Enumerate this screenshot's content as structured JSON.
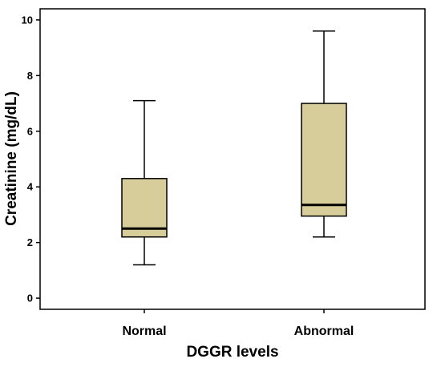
{
  "chart_data": {
    "type": "boxplot",
    "title": "",
    "xlabel": "DGGR levels",
    "ylabel": "Creatinine (mg/dL)",
    "categories": [
      "Normal",
      "Abnormal"
    ],
    "ylim": [
      -0.4,
      10.4
    ],
    "yticks": [
      "0",
      "2",
      "4",
      "6",
      "8",
      "10"
    ],
    "grid": false,
    "box_color": "#d6cd9a",
    "boxes": [
      {
        "category": "Normal",
        "min": 1.2,
        "q1": 2.2,
        "median": 2.5,
        "q3": 4.3,
        "max": 7.1
      },
      {
        "category": "Abnormal",
        "min": 2.2,
        "q1": 2.95,
        "median": 3.35,
        "q3": 7.0,
        "max": 9.6
      }
    ]
  }
}
